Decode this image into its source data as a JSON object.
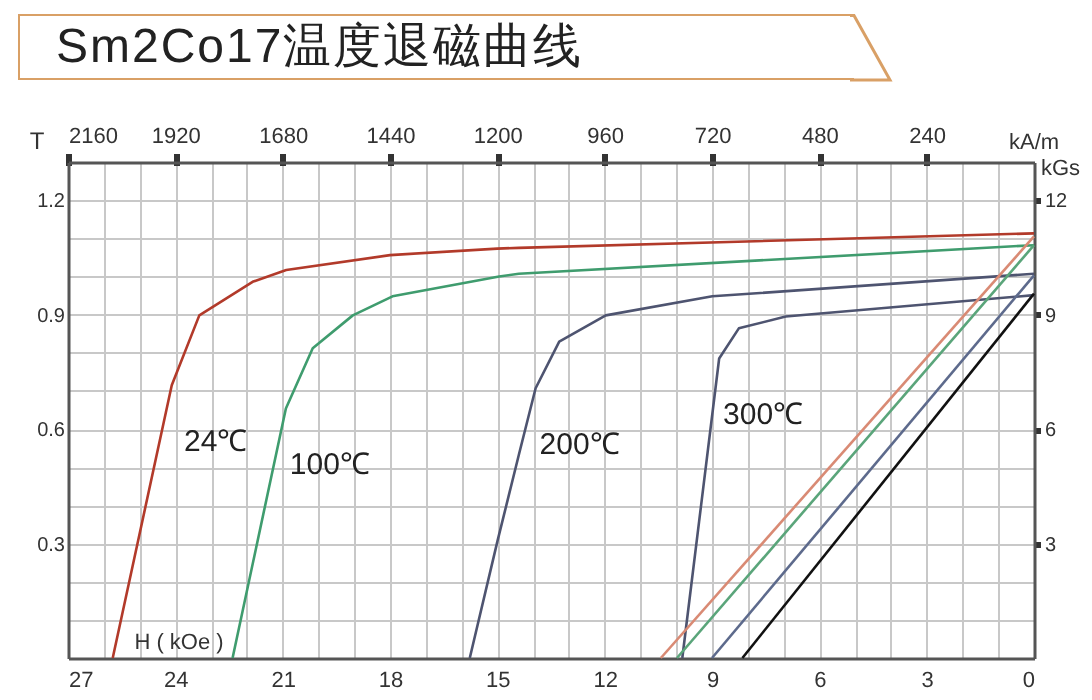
{
  "chart_data": {
    "type": "line",
    "title": "Sm2Co17温度退磁曲线",
    "xlabel": "H ( kOe )",
    "ylabel": "T",
    "y2label": "kGs",
    "x2label": "kA/m",
    "xlim": [
      27,
      0
    ],
    "ylim": [
      0,
      1.3
    ],
    "y2lim": [
      0,
      13
    ],
    "x2lim": [
      2160,
      0
    ],
    "xticks": [
      27,
      {
        "value": 26,
        "label": null
      },
      {
        "value": 25,
        "label": null
      },
      24,
      {
        "value": 23,
        "label": null
      },
      {
        "value": 22,
        "label": null
      },
      21,
      {
        "value": 20,
        "label": null
      },
      {
        "value": 19,
        "label": null
      },
      18,
      {
        "value": 17,
        "label": null
      },
      {
        "value": 16,
        "label": null
      },
      15,
      {
        "value": 14,
        "label": null
      },
      {
        "value": 13,
        "label": null
      },
      12,
      {
        "value": 11,
        "label": null
      },
      {
        "value": 10,
        "label": null
      },
      9,
      {
        "value": 8,
        "label": null
      },
      {
        "value": 7,
        "label": null
      },
      6,
      {
        "value": 5,
        "label": null
      },
      {
        "value": 4,
        "label": null
      },
      3,
      {
        "value": 2,
        "label": null
      },
      {
        "value": 1,
        "label": null
      },
      0
    ],
    "yticks": [
      {
        "value": 0.1,
        "label": null
      },
      {
        "value": 0.2,
        "label": null
      },
      0.3,
      {
        "value": 0.4,
        "label": null
      },
      {
        "value": 0.5,
        "label": null
      },
      0.6,
      {
        "value": 0.7,
        "label": null
      },
      {
        "value": 0.8,
        "label": null
      },
      0.9,
      {
        "value": 1.0,
        "label": null
      },
      {
        "value": 1.1,
        "label": null
      },
      1.2
    ],
    "y2ticks": [
      3,
      6,
      9,
      12
    ],
    "x2ticks": [
      2160,
      1920,
      1680,
      1440,
      1200,
      960,
      720,
      480,
      240
    ],
    "grid": true,
    "marker": "none",
    "line_style": "solid",
    "series": [
      {
        "color": "#b23a2a",
        "x": [
          25.75,
          24.1,
          23.33,
          21.84,
          20.9,
          18.0,
          15.0,
          14.4,
          0
        ],
        "values": [
          0,
          0.715,
          0.898,
          0.986,
          1.017,
          1.056,
          1.073,
          1.075,
          1.113
        ]
      },
      {
        "color": "#3f9c6e",
        "x": [
          22.4,
          20.91,
          20.16,
          19.04,
          17.93,
          14.95,
          14.4,
          0
        ],
        "values": [
          0,
          0.654,
          0.812,
          0.898,
          0.948,
          1.0,
          1.007,
          1.082
        ]
      },
      {
        "color": "#4e5470",
        "x": [
          15.77,
          15.0,
          14.4,
          13.93,
          13.27,
          11.97,
          8.99,
          0
        ],
        "values": [
          0,
          0.305,
          0.532,
          0.707,
          0.829,
          0.898,
          0.948,
          1.007
        ]
      },
      {
        "color": "#4e5470",
        "x": [
          9.83,
          9.36,
          8.8,
          8.25,
          6.94,
          3.22,
          0
        ],
        "values": [
          0,
          0.358,
          0.785,
          0.864,
          0.895,
          0.925,
          0.951
        ]
      },
      {
        "color": "#d98a74",
        "x": [
          10.43,
          0
        ],
        "values": [
          0,
          1.105
        ]
      },
      {
        "color": "#5aa57a",
        "x": [
          9.98,
          0
        ],
        "values": [
          0,
          1.082
        ]
      },
      {
        "color": "#5d6a8c",
        "x": [
          9.0,
          0
        ],
        "values": [
          0,
          1.003
        ]
      },
      {
        "color": "#111111",
        "x": [
          8.15,
          0
        ],
        "values": [
          0,
          0.955
        ]
      }
    ],
    "annotations": [
      "24℃",
      "100℃",
      "200℃",
      "300℃"
    ]
  }
}
